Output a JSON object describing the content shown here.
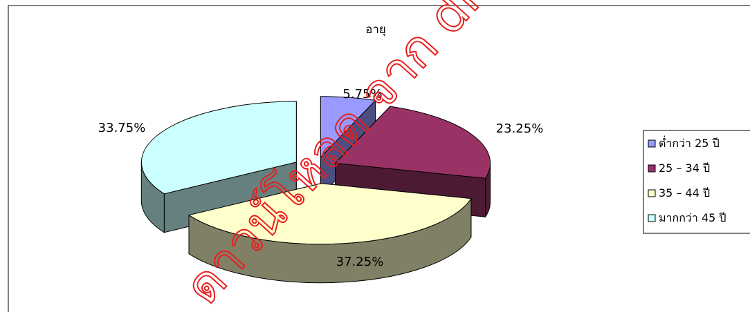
{
  "chart_data": {
    "type": "pie",
    "title": "อายุ",
    "categories": [
      "ต่ำกว่า 25 ปี",
      "25 – 34 ปี",
      "35 – 44 ปี",
      "มากกว่า 45 ปี"
    ],
    "values": [
      5.75,
      23.25,
      37.25,
      33.75
    ],
    "data_labels": [
      "5.75%",
      "23.25%",
      "37.25%",
      "33.75%"
    ],
    "colors": [
      "#9999ff",
      "#993366",
      "#ffffcc",
      "#ccffff"
    ],
    "side_colors": [
      "#4d4d80",
      "#4d1a33",
      "#808066",
      "#668080"
    ],
    "exploded": true,
    "three_d": true,
    "legend_position": "right"
  },
  "watermark": {
    "text": "ดาวน์โหลด จาก dric.nrct.go.th",
    "color": "#e81e1e"
  }
}
